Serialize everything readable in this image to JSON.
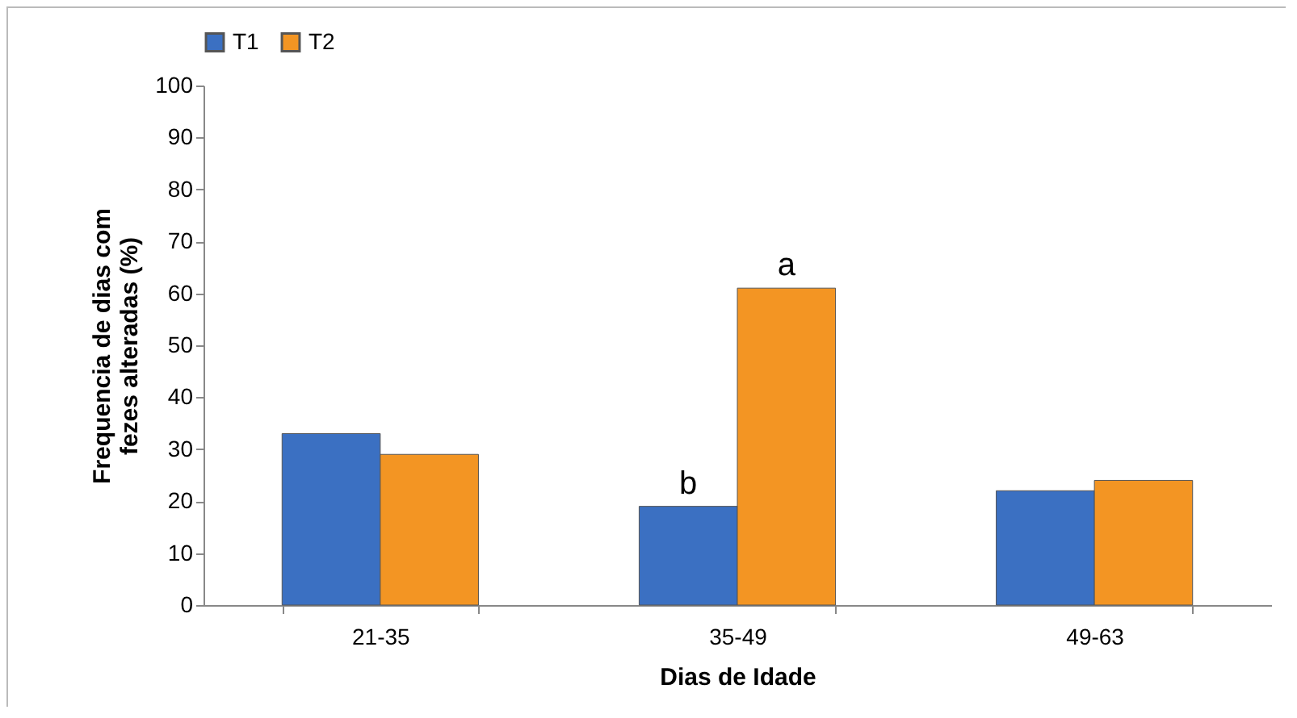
{
  "chart_data": {
    "type": "bar",
    "xlabel": "Dias de Idade",
    "ylabel": "Frequencia de dias com fezes alteradas (%)",
    "categories": [
      "21-35",
      "35-49",
      "49-63"
    ],
    "series": [
      {
        "name": "T1",
        "color": "#3b70c2",
        "values": [
          33,
          19,
          22
        ]
      },
      {
        "name": "T2",
        "color": "#f39523",
        "values": [
          29,
          61,
          24
        ]
      }
    ],
    "ylim": [
      0,
      100
    ],
    "yticks": [
      0,
      10,
      20,
      30,
      40,
      50,
      60,
      70,
      80,
      90,
      100
    ],
    "grid": false,
    "legend": "top",
    "annotations": [
      {
        "text": "b",
        "x": "35-49",
        "y": 19
      },
      {
        "text": "a",
        "x": "35-49",
        "y": 61
      }
    ]
  }
}
